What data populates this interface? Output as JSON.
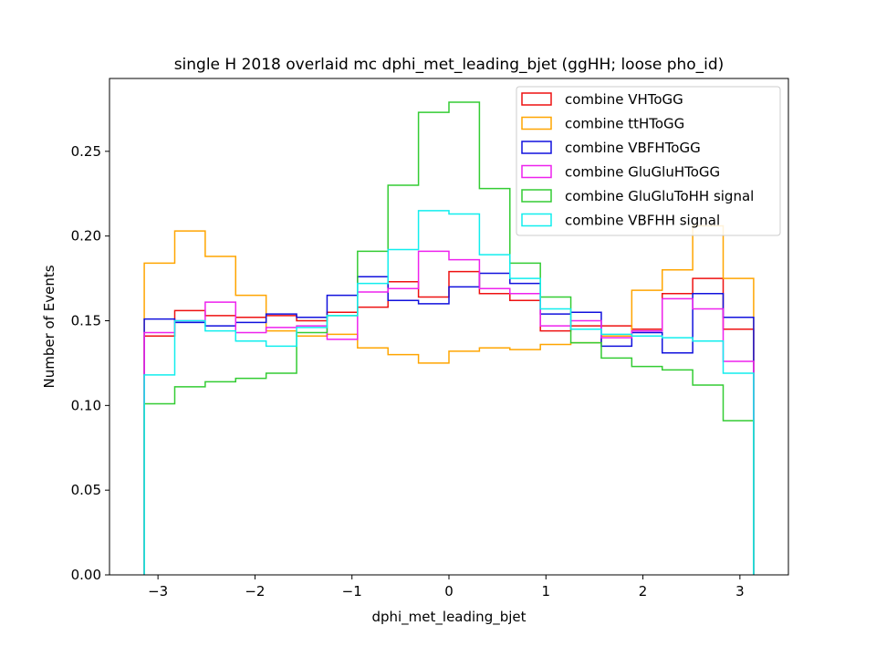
{
  "chart_data": {
    "type": "step",
    "title": "single H 2018 overlaid mc dphi_met_leading_bjet (ggHH; loose pho_id)",
    "xlabel": "dphi_met_leading_bjet",
    "ylabel": "Number of Events",
    "xlim": [
      -3.5,
      3.5
    ],
    "ylim": [
      0,
      0.293
    ],
    "xticks": [
      -3,
      -2,
      -1,
      0,
      1,
      2,
      3
    ],
    "xtick_labels": [
      "−3",
      "−2",
      "−1",
      "0",
      "1",
      "2",
      "3"
    ],
    "yticks": [
      0.0,
      0.05,
      0.1,
      0.15,
      0.2,
      0.25
    ],
    "ytick_labels": [
      "0.00",
      "0.05",
      "0.10",
      "0.15",
      "0.20",
      "0.25"
    ],
    "bin_edges": [
      -3.1416,
      -2.8274,
      -2.5133,
      -2.1991,
      -1.885,
      -1.5708,
      -1.2566,
      -0.9425,
      -0.6283,
      -0.3142,
      0.0,
      0.3142,
      0.6283,
      0.9425,
      1.2566,
      1.5708,
      1.885,
      2.1991,
      2.5133,
      2.8274,
      3.1416
    ],
    "legend_position": "upper right",
    "series": [
      {
        "name": "combine VHToGG",
        "color": "#ee1111",
        "values": [
          0.141,
          0.156,
          0.153,
          0.152,
          0.153,
          0.15,
          0.155,
          0.158,
          0.173,
          0.164,
          0.179,
          0.166,
          0.162,
          0.144,
          0.147,
          0.147,
          0.145,
          0.166,
          0.175,
          0.145
        ]
      },
      {
        "name": "combine ttHToGG",
        "color": "#ffa500",
        "values": [
          0.184,
          0.203,
          0.188,
          0.165,
          0.144,
          0.141,
          0.142,
          0.134,
          0.13,
          0.125,
          0.132,
          0.134,
          0.133,
          0.136,
          0.137,
          0.141,
          0.168,
          0.18,
          0.206,
          0.175
        ]
      },
      {
        "name": "combine VBFHToGG",
        "color": "#1111dd",
        "values": [
          0.151,
          0.149,
          0.147,
          0.149,
          0.154,
          0.152,
          0.165,
          0.176,
          0.162,
          0.16,
          0.17,
          0.178,
          0.172,
          0.154,
          0.155,
          0.135,
          0.143,
          0.131,
          0.166,
          0.152
        ]
      },
      {
        "name": "combine GluGluHToGG",
        "color": "#ee22ee",
        "values": [
          0.143,
          0.15,
          0.161,
          0.143,
          0.146,
          0.147,
          0.139,
          0.167,
          0.169,
          0.191,
          0.186,
          0.169,
          0.166,
          0.147,
          0.15,
          0.14,
          0.144,
          0.163,
          0.157,
          0.126
        ]
      },
      {
        "name": "combine GluGluToHH signal",
        "color": "#33cc33",
        "values": [
          0.101,
          0.111,
          0.114,
          0.116,
          0.119,
          0.143,
          0.153,
          0.191,
          0.23,
          0.273,
          0.279,
          0.228,
          0.184,
          0.164,
          0.137,
          0.128,
          0.123,
          0.121,
          0.112,
          0.091
        ]
      },
      {
        "name": "combine VBFHH signal",
        "color": "#11eeee",
        "values": [
          0.118,
          0.15,
          0.144,
          0.138,
          0.135,
          0.146,
          0.153,
          0.172,
          0.192,
          0.215,
          0.213,
          0.189,
          0.175,
          0.157,
          0.145,
          0.142,
          0.141,
          0.14,
          0.138,
          0.119
        ]
      }
    ]
  }
}
